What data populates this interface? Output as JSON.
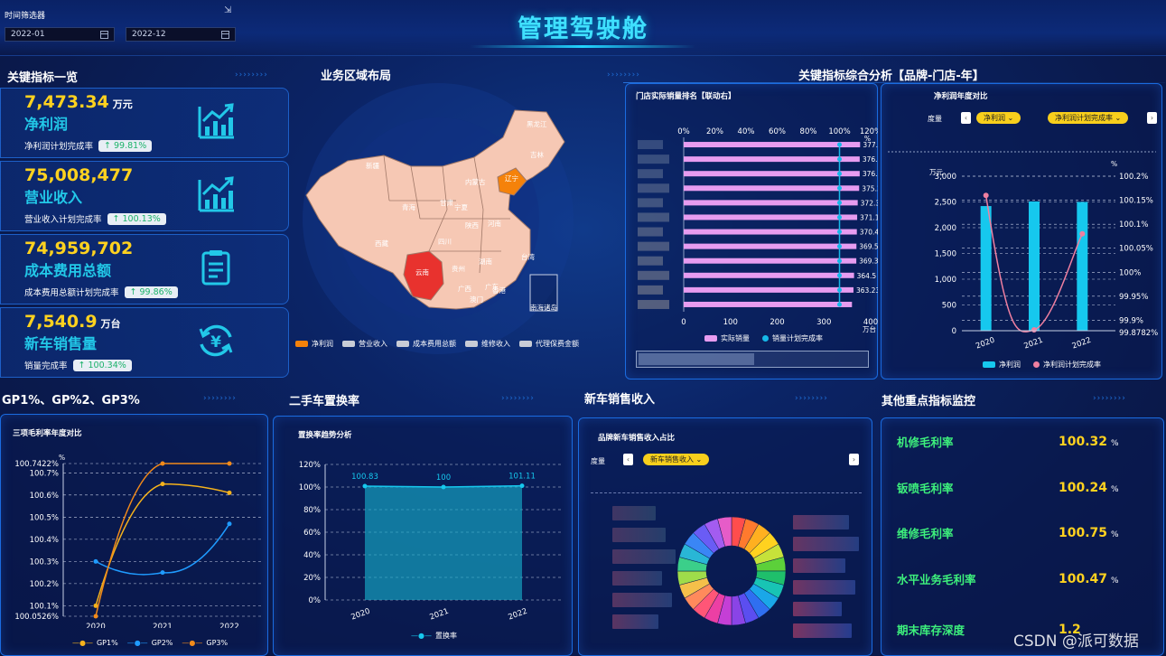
{
  "header": {
    "title": "管理驾驶舱",
    "filter_label": "时间筛选器",
    "date_start": "2022-01",
    "date_end": "2022-12"
  },
  "sections": {
    "kpi": "关键指标一览",
    "region": "业务区域布局",
    "composite": "关键指标综合分析【品牌-门店-年】",
    "gp": "GP1%、GP%2、GP3%",
    "replace": "二手车置换率",
    "new_car": "新车销售收入",
    "monitor": "其他重点指标监控"
  },
  "kpis": [
    {
      "value": "7,473.34",
      "unit": "万元",
      "name": "净利润",
      "sub": "净利润计划完成率",
      "badge": "↑ 99.81%",
      "icon": "growth-chart-icon"
    },
    {
      "value": "75,008,477",
      "unit": "",
      "name": "营业收入",
      "sub": "营业收入计划完成率",
      "badge": "↑ 100.13%",
      "icon": "growth-chart-icon"
    },
    {
      "value": "74,959,702",
      "unit": "",
      "name": "成本费用总额",
      "sub": "成本费用总额计划完成率",
      "badge": "↑ 99.86%",
      "icon": "clipboard-icon"
    },
    {
      "value": "7,540.9",
      "unit": "万台",
      "name": "新车销售量",
      "sub": "销量完成率",
      "badge": "↑ 100.34%",
      "icon": "yen-cycle-icon"
    }
  ],
  "map": {
    "provinces": [
      "新疆",
      "西藏",
      "内蒙古",
      "黑龙江",
      "吉林",
      "辽宁",
      "甘肃",
      "宁夏",
      "陕西",
      "四川",
      "青海",
      "河南",
      "云南",
      "贵州",
      "湖南",
      "广西",
      "广东",
      "台湾",
      "香港",
      "澳门"
    ],
    "inset": "南海诸岛",
    "legend": [
      "净利润",
      "营业收入",
      "成本费用总额",
      "维修收入",
      "代理保费金额"
    ],
    "colors": {
      "highlight_orange": "#f5820a",
      "highlight_red": "#e8322e",
      "base": "#f6c8b4"
    }
  },
  "store_rank": {
    "title": "门店实际销量排名【联动右】",
    "top_ticks": [
      "0%",
      "20%",
      "40%",
      "60%",
      "80%",
      "100%",
      "120%"
    ],
    "bottom_ticks": [
      "0",
      "100",
      "200",
      "300",
      "400"
    ],
    "pct_unit": "%",
    "bottom_unit": "万台",
    "legend": [
      "实际销量",
      "销量计划完成率"
    ]
  },
  "profit_chart": {
    "title": "净利润年度对比",
    "measure_label": "度量",
    "pill1": "净利润",
    "pill2": "净利润计划完成率",
    "left_unit": "万元",
    "right_unit": "%",
    "left_ticks": [
      "3,000",
      "2,500",
      "2,000",
      "1,500",
      "1,000",
      "500",
      "0"
    ],
    "right_ticks": [
      "100.2%",
      "100.15%",
      "100.1%",
      "100.05%",
      "100%",
      "99.95%",
      "99.9%",
      "99.8782%"
    ],
    "legend": [
      "净利润",
      "净利润计划完成率"
    ]
  },
  "gp_chart": {
    "title": "三项毛利率年度对比",
    "unit": "%",
    "yticks": [
      "100.7422%",
      "100.7%",
      "100.6%",
      "100.5%",
      "100.4%",
      "100.3%",
      "100.2%",
      "100.1%",
      "100.0526%"
    ],
    "legend": [
      "GP1%",
      "GP2%",
      "GP3%"
    ]
  },
  "replace_chart": {
    "title": "置换率趋势分析",
    "yticks": [
      "120%",
      "100%",
      "80%",
      "60%",
      "40%",
      "20%",
      "0%"
    ],
    "labels": [
      "100.83",
      "100",
      "101.11"
    ],
    "legend": "置换率"
  },
  "new_car_chart": {
    "title": "品牌新车销售收入占比",
    "measure_label": "度量",
    "pill": "新车销售收入"
  },
  "monitor": [
    {
      "label": "机修毛利率",
      "value": "100.32",
      "unit": "%"
    },
    {
      "label": "钣喷毛利率",
      "value": "100.24",
      "unit": "%"
    },
    {
      "label": "维修毛利率",
      "value": "100.75",
      "unit": "%"
    },
    {
      "label": "水平业务毛利率",
      "value": "100.47",
      "unit": "%"
    },
    {
      "label": "期末库存深度",
      "value": "1.2",
      "unit": ""
    }
  ],
  "watermark": "CSDN @派可数据",
  "chart_data": [
    {
      "type": "bar",
      "title": "门店实际销量排名【联动右】",
      "categories": [
        "",
        "",
        "",
        "",
        "",
        "",
        "",
        "",
        "",
        "",
        "",
        ""
      ],
      "series": [
        {
          "name": "实际销量",
          "values": [
            377.42,
            376.56,
            376.55,
            375.37,
            372.31,
            371.13,
            370.45,
            369.56,
            369.3,
            364.5,
            363.23,
            360
          ]
        },
        {
          "name": "销量计划完成率",
          "values": [
            100,
            100,
            100,
            100,
            100,
            100,
            100,
            100,
            100,
            100,
            100,
            100
          ]
        }
      ],
      "xlim": [
        0,
        400
      ],
      "x2lim": [
        0,
        120
      ],
      "data_labels": [
        "377.42",
        "376.56",
        "376.55",
        "375.37",
        "372.31",
        "371.13",
        "370.45",
        "369.56",
        "369.3",
        "364.5",
        "363.23"
      ]
    },
    {
      "type": "bar",
      "title": "净利润年度对比",
      "categories": [
        "2020",
        "2021",
        "2022"
      ],
      "series": [
        {
          "name": "净利润",
          "values": [
            2420,
            2510,
            2500
          ]
        },
        {
          "name": "净利润计划完成率",
          "values": [
            100.16,
            99.88,
            100.08
          ]
        }
      ],
      "ylim": [
        0,
        3000
      ],
      "y2lim": [
        99.8782,
        100.2
      ]
    },
    {
      "type": "line",
      "title": "三项毛利率年度对比",
      "categories": [
        "2020",
        "2021",
        "2022"
      ],
      "series": [
        {
          "name": "GP1%",
          "values": [
            100.1,
            100.65,
            100.61
          ]
        },
        {
          "name": "GP2%",
          "values": [
            100.3,
            100.25,
            100.47
          ]
        },
        {
          "name": "GP3%",
          "values": [
            100.0526,
            100.7422,
            100.7422
          ]
        }
      ],
      "ylim": [
        100.0526,
        100.7422
      ]
    },
    {
      "type": "area",
      "title": "置换率趋势分析",
      "categories": [
        "2020",
        "2021",
        "2022"
      ],
      "series": [
        {
          "name": "置换率",
          "values": [
            100.83,
            100,
            101.11
          ]
        }
      ],
      "ylim": [
        0,
        120
      ]
    },
    {
      "type": "pie",
      "title": "品牌新车销售收入占比",
      "values": [
        1,
        1,
        1,
        1,
        1,
        1,
        1,
        1,
        1,
        1,
        1,
        1,
        1,
        1,
        1,
        1,
        1,
        1,
        1,
        1,
        1,
        1,
        1,
        1
      ]
    }
  ]
}
